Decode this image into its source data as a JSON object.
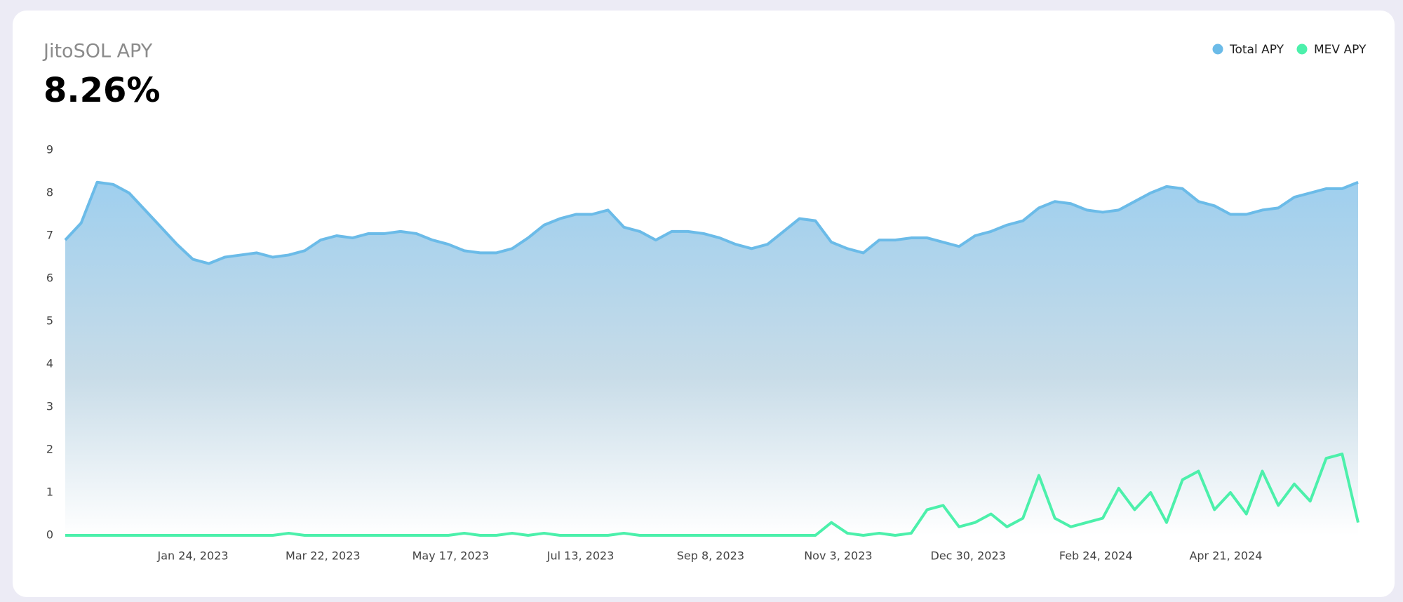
{
  "chart_data": {
    "type": "area",
    "title": "JitoSOL APY",
    "headline": "8.26%",
    "legend": "top-right",
    "grid": false,
    "x": [
      "2022-11-29",
      "2022-12-06",
      "2022-12-13",
      "2022-12-20",
      "2022-12-27",
      "2023-01-03",
      "2023-01-10",
      "2023-01-17",
      "2023-01-24",
      "2023-01-31",
      "2023-02-07",
      "2023-02-14",
      "2023-02-21",
      "2023-02-28",
      "2023-03-07",
      "2023-03-14",
      "2023-03-21",
      "2023-03-28",
      "2023-04-04",
      "2023-04-11",
      "2023-04-18",
      "2023-04-25",
      "2023-05-02",
      "2023-05-09",
      "2023-05-16",
      "2023-05-23",
      "2023-05-30",
      "2023-06-06",
      "2023-06-13",
      "2023-06-20",
      "2023-06-27",
      "2023-07-04",
      "2023-07-11",
      "2023-07-18",
      "2023-07-25",
      "2023-08-01",
      "2023-08-08",
      "2023-08-15",
      "2023-08-22",
      "2023-08-29",
      "2023-09-05",
      "2023-09-12",
      "2023-09-19",
      "2023-09-26",
      "2023-10-03",
      "2023-10-10",
      "2023-10-17",
      "2023-10-24",
      "2023-10-31",
      "2023-11-07",
      "2023-11-14",
      "2023-11-21",
      "2023-11-28",
      "2023-12-05",
      "2023-12-12",
      "2023-12-19",
      "2023-12-26",
      "2024-01-02",
      "2024-01-09",
      "2024-01-16",
      "2024-01-23",
      "2024-01-30",
      "2024-02-06",
      "2024-02-13",
      "2024-02-20",
      "2024-02-27",
      "2024-03-05",
      "2024-03-12",
      "2024-03-19",
      "2024-03-26",
      "2024-04-02",
      "2024-04-09",
      "2024-04-16",
      "2024-04-23",
      "2024-04-30",
      "2024-05-07",
      "2024-05-14",
      "2024-05-21",
      "2024-05-28",
      "2024-06-04",
      "2024-06-11",
      "2024-06-18"
    ],
    "series": [
      {
        "name": "Total APY",
        "color": "#6bbbe8",
        "values": [
          6.9,
          7.3,
          8.25,
          8.2,
          8.0,
          7.6,
          7.2,
          6.8,
          6.45,
          6.35,
          6.5,
          6.55,
          6.6,
          6.5,
          6.55,
          6.65,
          6.9,
          7.0,
          6.95,
          7.05,
          7.05,
          7.1,
          7.05,
          6.9,
          6.8,
          6.65,
          6.6,
          6.6,
          6.7,
          6.95,
          7.25,
          7.4,
          7.5,
          7.5,
          7.6,
          7.2,
          7.1,
          6.9,
          7.1,
          7.1,
          7.05,
          6.95,
          6.8,
          6.7,
          6.8,
          7.1,
          7.4,
          7.35,
          6.85,
          6.7,
          6.6,
          6.9,
          6.9,
          6.95,
          6.95,
          6.85,
          6.75,
          7.0,
          7.1,
          7.25,
          7.35,
          7.65,
          7.8,
          7.75,
          7.6,
          7.55,
          7.6,
          7.8,
          8.0,
          8.15,
          8.1,
          7.8,
          7.7,
          7.5,
          7.5,
          7.6,
          7.65,
          7.9,
          8.0,
          8.1,
          8.1,
          8.25
        ]
      },
      {
        "name": "MEV APY",
        "color": "#4cf0ab",
        "values": [
          0,
          0,
          0,
          0,
          0,
          0,
          0,
          0,
          0,
          0,
          0,
          0,
          0,
          0,
          0.05,
          0,
          0,
          0,
          0,
          0,
          0,
          0,
          0,
          0,
          0,
          0.05,
          0,
          0,
          0.05,
          0,
          0.05,
          0,
          0,
          0,
          0,
          0.05,
          0,
          0,
          0,
          0,
          0,
          0,
          0,
          0,
          0,
          0,
          0,
          0,
          0.3,
          0.05,
          0,
          0.05,
          0,
          0.05,
          0.6,
          0.7,
          0.2,
          0.3,
          0.5,
          0.2,
          0.4,
          1.4,
          0.4,
          0.2,
          0.3,
          0.4,
          1.1,
          0.6,
          1.0,
          0.3,
          1.3,
          1.5,
          0.6,
          1.0,
          0.5,
          1.5,
          0.7,
          1.2,
          0.8,
          1.8,
          1.9,
          0.3
        ]
      }
    ],
    "xlim": [
      "2022-11-29",
      "2024-06-18"
    ],
    "xticks": [
      {
        "value": "2023-01-24",
        "label": "Jan 24, 2023"
      },
      {
        "value": "2023-03-22",
        "label": "Mar 22, 2023"
      },
      {
        "value": "2023-05-17",
        "label": "May 17, 2023"
      },
      {
        "value": "2023-07-13",
        "label": "Jul 13, 2023"
      },
      {
        "value": "2023-09-08",
        "label": "Sep 8, 2023"
      },
      {
        "value": "2023-11-03",
        "label": "Nov 3, 2023"
      },
      {
        "value": "2023-12-30",
        "label": "Dec 30, 2023"
      },
      {
        "value": "2024-02-24",
        "label": "Feb 24, 2024"
      },
      {
        "value": "2024-04-21",
        "label": "Apr 21, 2024"
      }
    ],
    "ylim": [
      0,
      9
    ],
    "yticks": [
      0,
      1,
      2,
      3,
      4,
      5,
      6,
      7,
      8,
      9
    ]
  }
}
